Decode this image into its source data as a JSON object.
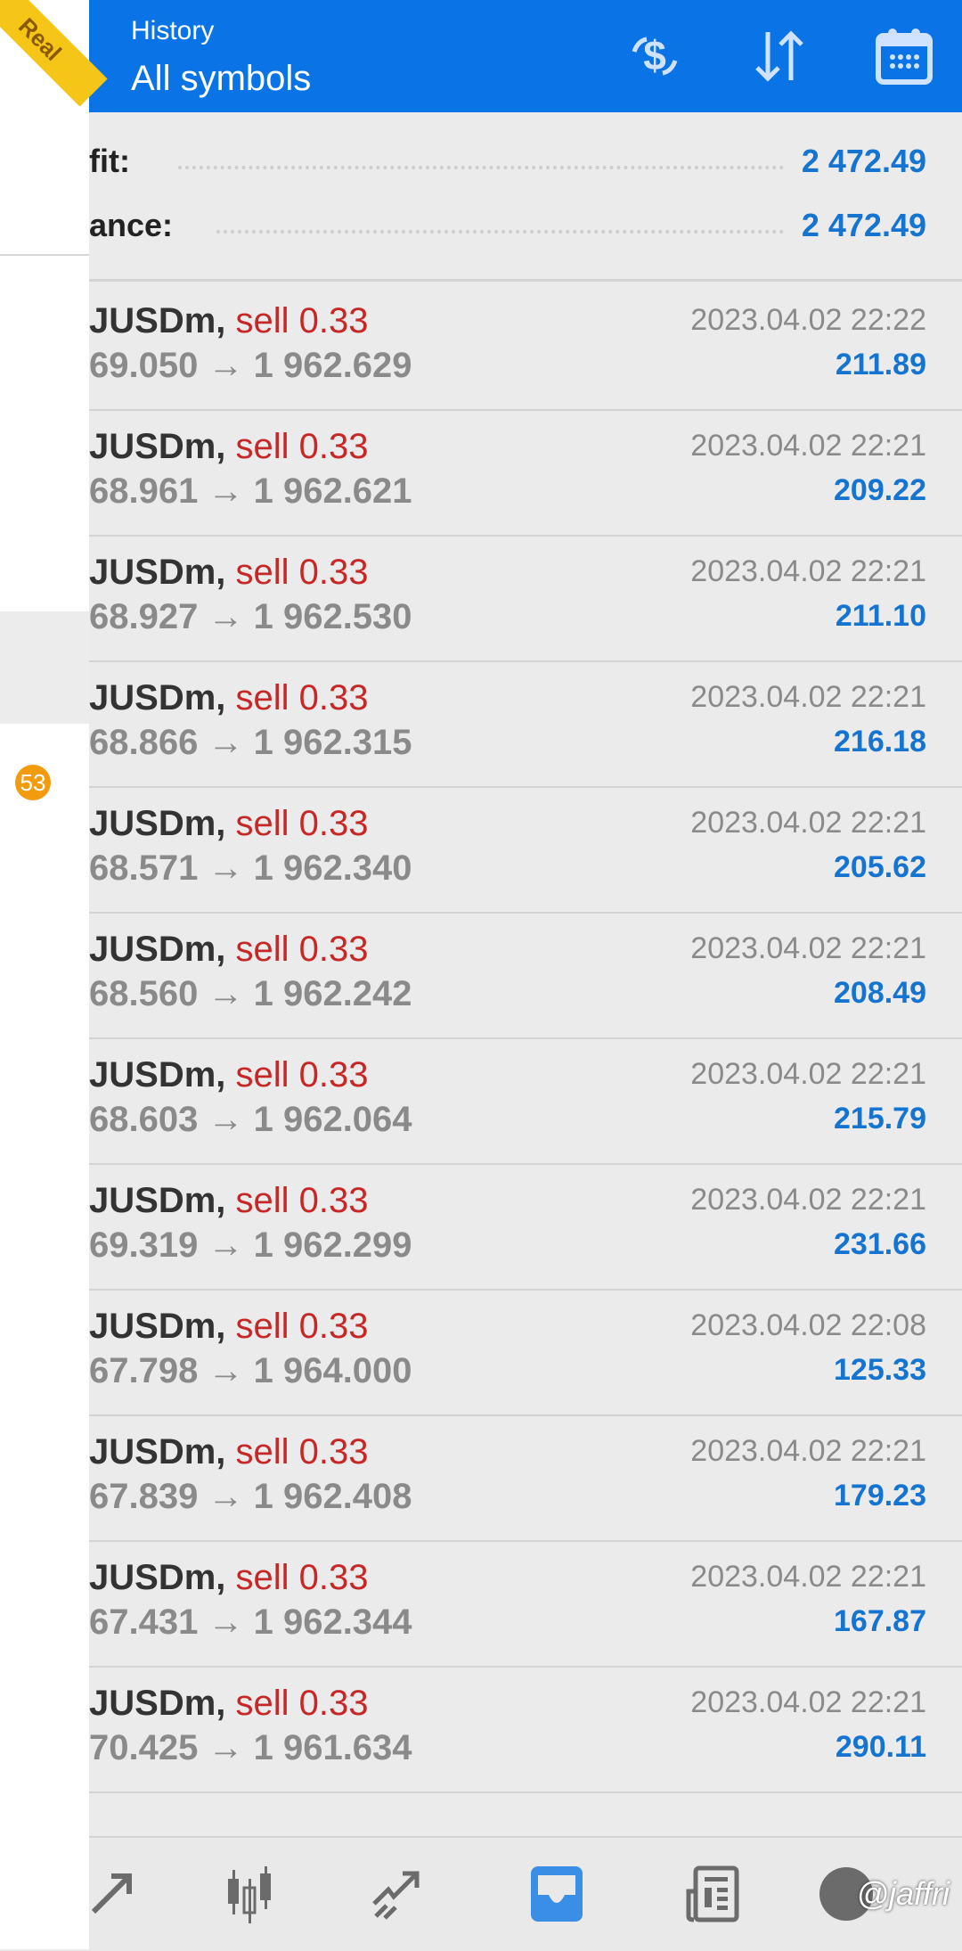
{
  "badge": {
    "label": "Real",
    "color": "#f5c518"
  },
  "side_panel": {
    "notification_count": "53"
  },
  "header": {
    "title": "History",
    "subtitle": "All symbols",
    "icons": [
      "deposit-withdraw-icon",
      "sort-icon",
      "calendar-icon"
    ],
    "color": "#0a74e6"
  },
  "summary": [
    {
      "label": "fit:",
      "value": "2 472.49"
    },
    {
      "label": "ance:",
      "value": "2 472.49"
    }
  ],
  "trades": [
    {
      "symbol": "JUSDm,",
      "side": "sell 0.33",
      "open": "69.050",
      "close": "1 962.629",
      "time": "2023.04.02 22:22",
      "profit": "211.89"
    },
    {
      "symbol": "JUSDm,",
      "side": "sell 0.33",
      "open": "68.961",
      "close": "1 962.621",
      "time": "2023.04.02 22:21",
      "profit": "209.22"
    },
    {
      "symbol": "JUSDm,",
      "side": "sell 0.33",
      "open": "68.927",
      "close": "1 962.530",
      "time": "2023.04.02 22:21",
      "profit": "211.10"
    },
    {
      "symbol": "JUSDm,",
      "side": "sell 0.33",
      "open": "68.866",
      "close": "1 962.315",
      "time": "2023.04.02 22:21",
      "profit": "216.18"
    },
    {
      "symbol": "JUSDm,",
      "side": "sell 0.33",
      "open": "68.571",
      "close": "1 962.340",
      "time": "2023.04.02 22:21",
      "profit": "205.62"
    },
    {
      "symbol": "JUSDm,",
      "side": "sell 0.33",
      "open": "68.560",
      "close": "1 962.242",
      "time": "2023.04.02 22:21",
      "profit": "208.49"
    },
    {
      "symbol": "JUSDm,",
      "side": "sell 0.33",
      "open": "68.603",
      "close": "1 962.064",
      "time": "2023.04.02 22:21",
      "profit": "215.79"
    },
    {
      "symbol": "JUSDm,",
      "side": "sell 0.33",
      "open": "69.319",
      "close": "1 962.299",
      "time": "2023.04.02 22:21",
      "profit": "231.66"
    },
    {
      "symbol": "JUSDm,",
      "side": "sell 0.33",
      "open": "67.798",
      "close": "1 964.000",
      "time": "2023.04.02 22:08",
      "profit": "125.33"
    },
    {
      "symbol": "JUSDm,",
      "side": "sell 0.33",
      "open": "67.839",
      "close": "1 962.408",
      "time": "2023.04.02 22:21",
      "profit": "179.23"
    },
    {
      "symbol": "JUSDm,",
      "side": "sell 0.33",
      "open": "67.431",
      "close": "1 962.344",
      "time": "2023.04.02 22:21",
      "profit": "167.87"
    },
    {
      "symbol": "JUSDm,",
      "side": "sell 0.33",
      "open": "70.425",
      "close": "1 961.634",
      "time": "2023.04.02 22:21",
      "profit": "290.11"
    }
  ],
  "arrow": "→",
  "nav": {
    "items": [
      "quotes-icon",
      "chart-icon",
      "trade-icon",
      "history-icon",
      "news-icon",
      "chat-icon"
    ],
    "active": "history-icon",
    "active_color": "#3a8ee6"
  },
  "watermark": "@jaffri"
}
